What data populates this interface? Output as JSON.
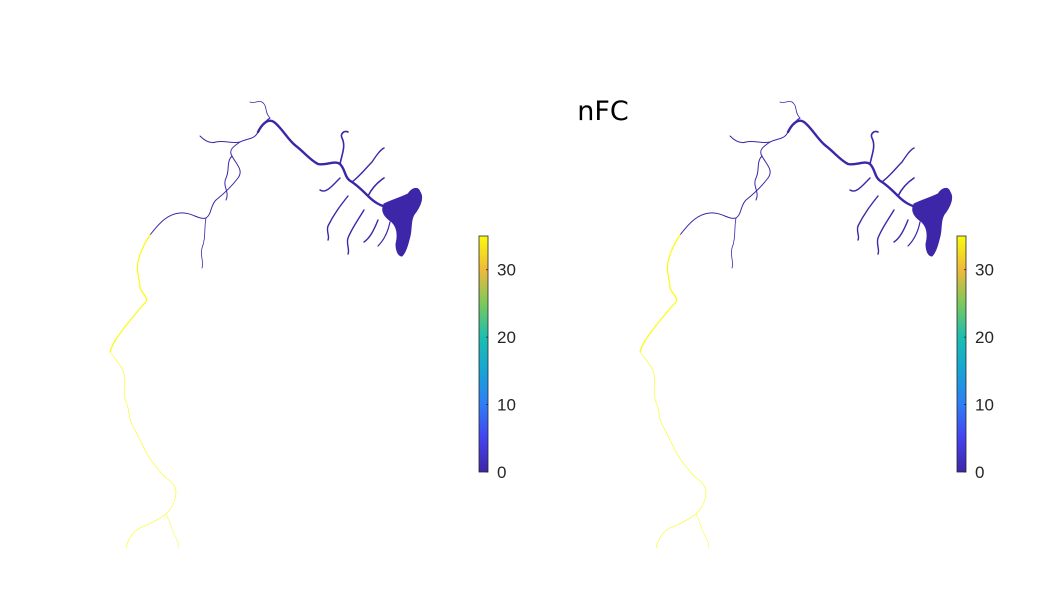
{
  "figure": {
    "title": "nFC",
    "colors": {
      "background": "#ffffff",
      "low": "#3e26a8",
      "high": "#f9fb0e",
      "title": "#000000",
      "tick": "#262626"
    }
  },
  "chart_data": {
    "type": "heatmap",
    "title": "nFC",
    "colormap": "parula",
    "clim": [
      0,
      35
    ],
    "colorbar_ticks": [
      "0",
      "10",
      "20",
      "30"
    ],
    "colorbar_tick_values": [
      0,
      10,
      20,
      30
    ],
    "panels": [
      {
        "name": "",
        "description_values": {
          "estuary_upper": 0,
          "coast_lower": 35
        }
      },
      {
        "name": "",
        "description_values": {
          "estuary_upper": 0,
          "coast_lower": 35
        }
      }
    ],
    "colorbar_stops": [
      {
        "value": 0,
        "color": "#3e26a8"
      },
      {
        "value": 5,
        "color": "#4443f0"
      },
      {
        "value": 10,
        "color": "#2f7df6"
      },
      {
        "value": 15,
        "color": "#16a5d5"
      },
      {
        "value": 20,
        "color": "#1bbeb0"
      },
      {
        "value": 25,
        "color": "#7bc95a"
      },
      {
        "value": 30,
        "color": "#f0b93a"
      },
      {
        "value": 35,
        "color": "#f9fb0e"
      }
    ]
  }
}
